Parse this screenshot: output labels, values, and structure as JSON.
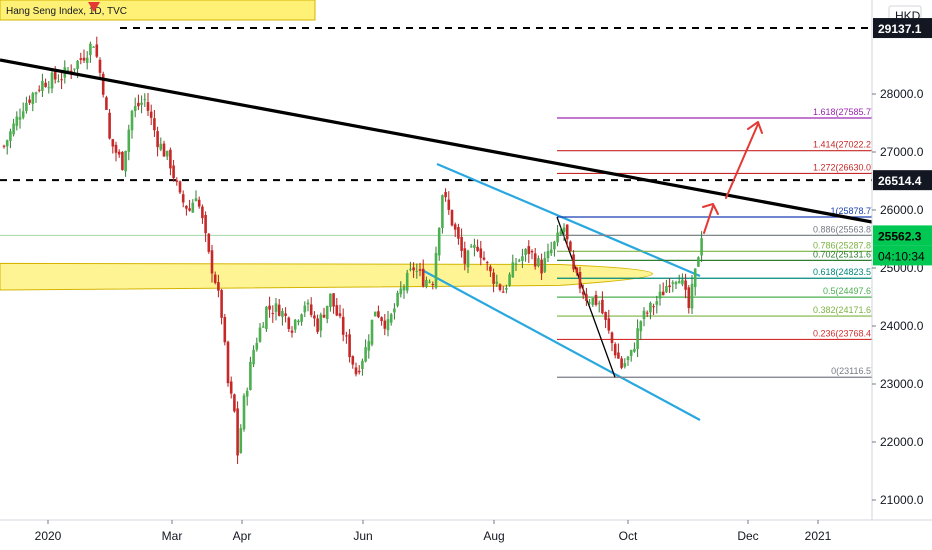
{
  "chart_data": {
    "type": "candlestick",
    "title": "Hang Seng Index, 1D, TVC",
    "currency": "HKD",
    "x_ticks": [
      "2020",
      "Mar",
      "Apr",
      "Jun",
      "Aug",
      "Oct",
      "Dec",
      "2021"
    ],
    "y_ticks": [
      "21000.0",
      "22000.0",
      "23000.0",
      "24000.0",
      "25000.0",
      "26000.0",
      "27000.0",
      "28000.0"
    ],
    "ylim": [
      20700,
      29500
    ],
    "price_labels": {
      "last": "25562.3",
      "countdown": "04:10:34",
      "resistance_1": "26514.4",
      "resistance_2": "29137.1"
    },
    "fib_levels": [
      {
        "label": "1.618(27585.7)",
        "value": 27585.7,
        "color": "#9c27b0"
      },
      {
        "label": "1.414(27022.2)",
        "value": 27022.2,
        "color": "#c62828"
      },
      {
        "label": "1.272(26630.0)",
        "value": 26630.0,
        "color": "#c62828"
      },
      {
        "label": "1(25878.7)",
        "value": 25878.7,
        "color": "#1a3fb0"
      },
      {
        "label": "0.886(25563.8)",
        "value": 25563.8,
        "color": "#787b86"
      },
      {
        "label": "0.786(25287.8)",
        "value": 25287.8,
        "color": "#7cb342"
      },
      {
        "label": "0.702(25131.6)",
        "value": 25131.6,
        "color": "#2e7d32"
      },
      {
        "label": "0.618(24823.5)",
        "value": 24823.5,
        "color": "#00897b"
      },
      {
        "label": "0.5(24497.6)",
        "value": 24497.6,
        "color": "#4caf50"
      },
      {
        "label": "0.382(24171.6)",
        "value": 24171.6,
        "color": "#7cb342"
      },
      {
        "label": "0.236(23768.4)",
        "value": 23768.4,
        "color": "#d32f2f"
      },
      {
        "label": "0(23116.5)",
        "value": 23116.5,
        "color": "#787b86"
      }
    ],
    "colors": {
      "up": "#26a69a",
      "up_fill": "#4caf50",
      "down": "#ef5350",
      "down_fill": "#c62828",
      "trendline": "#000000",
      "channel": "#29a8e0",
      "zone": "#ffeb3b",
      "arrow": "#e53935",
      "badge": "#131722",
      "last_badge": "#00c853"
    },
    "anchors": [
      {
        "day": 0,
        "price": 27100
      },
      {
        "day": 6,
        "price": 27800
      },
      {
        "day": 12,
        "price": 28200
      },
      {
        "day": 18,
        "price": 28300
      },
      {
        "day": 24,
        "price": 28600
      },
      {
        "day": 28,
        "price": 28900
      },
      {
        "day": 31,
        "price": 28100
      },
      {
        "day": 33,
        "price": 27200
      },
      {
        "day": 37,
        "price": 26800
      },
      {
        "day": 40,
        "price": 27700
      },
      {
        "day": 44,
        "price": 27900
      },
      {
        "day": 48,
        "price": 27200
      },
      {
        "day": 52,
        "price": 26800
      },
      {
        "day": 55,
        "price": 26200
      },
      {
        "day": 58,
        "price": 26000
      },
      {
        "day": 60,
        "price": 26300
      },
      {
        "day": 62,
        "price": 25800
      },
      {
        "day": 64,
        "price": 25200
      },
      {
        "day": 66,
        "price": 24800
      },
      {
        "day": 68,
        "price": 24200
      },
      {
        "day": 70,
        "price": 23000
      },
      {
        "day": 72,
        "price": 22500
      },
      {
        "day": 73,
        "price": 21800
      },
      {
        "day": 75,
        "price": 22700
      },
      {
        "day": 78,
        "price": 23600
      },
      {
        "day": 82,
        "price": 24300
      },
      {
        "day": 86,
        "price": 24300
      },
      {
        "day": 90,
        "price": 24000
      },
      {
        "day": 94,
        "price": 24400
      },
      {
        "day": 98,
        "price": 24000
      },
      {
        "day": 102,
        "price": 24500
      },
      {
        "day": 106,
        "price": 23900
      },
      {
        "day": 110,
        "price": 23200
      },
      {
        "day": 113,
        "price": 23600
      },
      {
        "day": 116,
        "price": 24300
      },
      {
        "day": 120,
        "price": 24000
      },
      {
        "day": 124,
        "price": 24600
      },
      {
        "day": 128,
        "price": 25000
      },
      {
        "day": 131,
        "price": 24800
      },
      {
        "day": 134,
        "price": 24800
      },
      {
        "day": 137,
        "price": 26300
      },
      {
        "day": 140,
        "price": 25800
      },
      {
        "day": 144,
        "price": 25100
      },
      {
        "day": 148,
        "price": 25400
      },
      {
        "day": 152,
        "price": 24900
      },
      {
        "day": 156,
        "price": 24600
      },
      {
        "day": 160,
        "price": 25100
      },
      {
        "day": 164,
        "price": 25300
      },
      {
        "day": 168,
        "price": 25000
      },
      {
        "day": 172,
        "price": 25400
      },
      {
        "day": 175,
        "price": 25700
      },
      {
        "day": 178,
        "price": 24900
      },
      {
        "day": 182,
        "price": 24500
      },
      {
        "day": 186,
        "price": 24400
      },
      {
        "day": 190,
        "price": 23700
      },
      {
        "day": 193,
        "price": 23300
      },
      {
        "day": 196,
        "price": 23500
      },
      {
        "day": 199,
        "price": 24100
      },
      {
        "day": 202,
        "price": 24300
      },
      {
        "day": 205,
        "price": 24500
      },
      {
        "day": 208,
        "price": 24800
      },
      {
        "day": 211,
        "price": 24900
      },
      {
        "day": 214,
        "price": 24300
      },
      {
        "day": 216,
        "price": 24900
      },
      {
        "day": 218,
        "price": 25600
      }
    ]
  }
}
